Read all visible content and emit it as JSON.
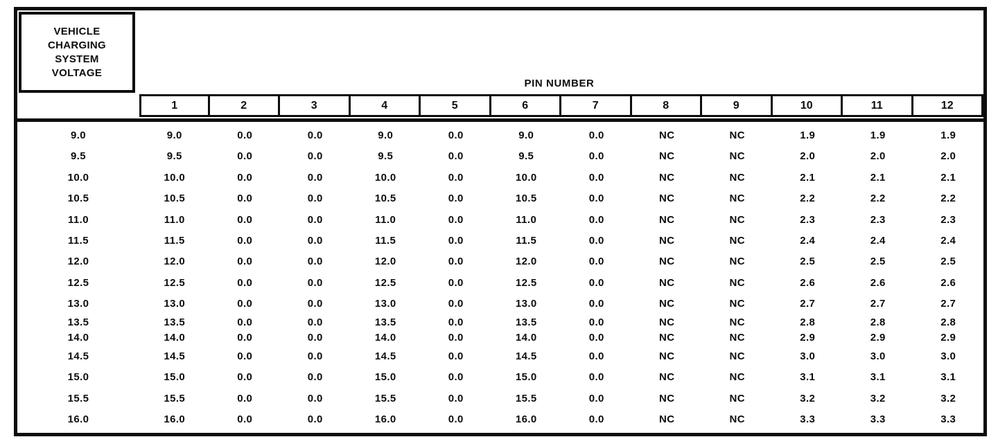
{
  "table": {
    "row_header_lines": [
      "VEHICLE",
      "CHARGING",
      "SYSTEM",
      "VOLTAGE"
    ],
    "col_group_title": "PIN NUMBER",
    "pin_headers": [
      "1",
      "2",
      "3",
      "4",
      "5",
      "6",
      "7",
      "8",
      "9",
      "10",
      "11",
      "12"
    ],
    "rows": [
      {
        "voltage": "9.0",
        "pins": [
          "9.0",
          "0.0",
          "0.0",
          "9.0",
          "0.0",
          "9.0",
          "0.0",
          "NC",
          "NC",
          "1.9",
          "1.9",
          "1.9"
        ]
      },
      {
        "voltage": "9.5",
        "pins": [
          "9.5",
          "0.0",
          "0.0",
          "9.5",
          "0.0",
          "9.5",
          "0.0",
          "NC",
          "NC",
          "2.0",
          "2.0",
          "2.0"
        ]
      },
      {
        "voltage": "10.0",
        "pins": [
          "10.0",
          "0.0",
          "0.0",
          "10.0",
          "0.0",
          "10.0",
          "0.0",
          "NC",
          "NC",
          "2.1",
          "2.1",
          "2.1"
        ]
      },
      {
        "voltage": "10.5",
        "pins": [
          "10.5",
          "0.0",
          "0.0",
          "10.5",
          "0.0",
          "10.5",
          "0.0",
          "NC",
          "NC",
          "2.2",
          "2.2",
          "2.2"
        ]
      },
      {
        "voltage": "11.0",
        "pins": [
          "11.0",
          "0.0",
          "0.0",
          "11.0",
          "0.0",
          "11.0",
          "0.0",
          "NC",
          "NC",
          "2.3",
          "2.3",
          "2.3"
        ]
      },
      {
        "voltage": "11.5",
        "pins": [
          "11.5",
          "0.0",
          "0.0",
          "11.5",
          "0.0",
          "11.5",
          "0.0",
          "NC",
          "NC",
          "2.4",
          "2.4",
          "2.4"
        ]
      },
      {
        "voltage": "12.0",
        "pins": [
          "12.0",
          "0.0",
          "0.0",
          "12.0",
          "0.0",
          "12.0",
          "0.0",
          "NC",
          "NC",
          "2.5",
          "2.5",
          "2.5"
        ]
      },
      {
        "voltage": "12.5",
        "pins": [
          "12.5",
          "0.0",
          "0.0",
          "12.5",
          "0.0",
          "12.5",
          "0.0",
          "NC",
          "NC",
          "2.6",
          "2.6",
          "2.6"
        ]
      },
      {
        "voltage": "13.0",
        "pins": [
          "13.0",
          "0.0",
          "0.0",
          "13.0",
          "0.0",
          "13.0",
          "0.0",
          "NC",
          "NC",
          "2.7",
          "2.7",
          "2.7"
        ]
      },
      {
        "voltage": "13.5",
        "pins": [
          "13.5",
          "0.0",
          "0.0",
          "13.5",
          "0.0",
          "13.5",
          "0.0",
          "NC",
          "NC",
          "2.8",
          "2.8",
          "2.8"
        ]
      },
      {
        "voltage": "14.0",
        "pins": [
          "14.0",
          "0.0",
          "0.0",
          "14.0",
          "0.0",
          "14.0",
          "0.0",
          "NC",
          "NC",
          "2.9",
          "2.9",
          "2.9"
        ]
      },
      {
        "voltage": "14.5",
        "pins": [
          "14.5",
          "0.0",
          "0.0",
          "14.5",
          "0.0",
          "14.5",
          "0.0",
          "NC",
          "NC",
          "3.0",
          "3.0",
          "3.0"
        ]
      },
      {
        "voltage": "15.0",
        "pins": [
          "15.0",
          "0.0",
          "0.0",
          "15.0",
          "0.0",
          "15.0",
          "0.0",
          "NC",
          "NC",
          "3.1",
          "3.1",
          "3.1"
        ]
      },
      {
        "voltage": "15.5",
        "pins": [
          "15.5",
          "0.0",
          "0.0",
          "15.5",
          "0.0",
          "15.5",
          "0.0",
          "NC",
          "NC",
          "3.2",
          "3.2",
          "3.2"
        ]
      },
      {
        "voltage": "16.0",
        "pins": [
          "16.0",
          "0.0",
          "0.0",
          "16.0",
          "0.0",
          "16.0",
          "0.0",
          "NC",
          "NC",
          "3.3",
          "3.3",
          "3.3"
        ]
      }
    ]
  },
  "colors": {
    "ink": "#0d0d0d",
    "paper": "#ffffff"
  }
}
